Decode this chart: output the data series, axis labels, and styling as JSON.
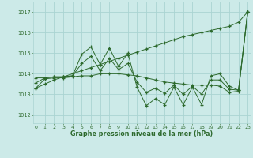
{
  "x": [
    0,
    1,
    2,
    3,
    4,
    5,
    6,
    7,
    8,
    9,
    10,
    11,
    12,
    13,
    14,
    15,
    16,
    17,
    18,
    19,
    20,
    21,
    22,
    23
  ],
  "line_diag": [
    1013.3,
    1013.5,
    1013.7,
    1013.85,
    1014.0,
    1014.15,
    1014.3,
    1014.45,
    1014.6,
    1014.75,
    1014.9,
    1015.05,
    1015.2,
    1015.35,
    1015.5,
    1015.65,
    1015.8,
    1015.9,
    1016.0,
    1016.1,
    1016.2,
    1016.3,
    1016.5,
    1017.0
  ],
  "line_flat": [
    1013.3,
    1013.75,
    1013.8,
    1013.8,
    1013.85,
    1013.9,
    1013.9,
    1014.0,
    1014.0,
    1014.0,
    1013.95,
    1013.9,
    1013.8,
    1013.7,
    1013.6,
    1013.55,
    1013.5,
    1013.45,
    1013.45,
    1013.45,
    1013.4,
    1013.1,
    1013.15,
    1017.0
  ],
  "line_zigzag": [
    1013.8,
    1013.8,
    1013.85,
    1013.85,
    1013.9,
    1014.95,
    1015.3,
    1014.45,
    1015.25,
    1014.35,
    1015.0,
    1013.35,
    1012.45,
    1012.8,
    1012.5,
    1013.35,
    1012.5,
    1013.35,
    1012.5,
    1013.9,
    1014.0,
    1013.4,
    1013.2,
    1017.0
  ],
  "line_mid": [
    1013.55,
    1013.8,
    1013.85,
    1013.85,
    1013.9,
    1014.5,
    1014.85,
    1014.15,
    1014.75,
    1014.2,
    1014.5,
    1013.6,
    1013.1,
    1013.3,
    1013.05,
    1013.45,
    1013.0,
    1013.4,
    1013.0,
    1013.7,
    1013.7,
    1013.25,
    1013.2,
    1017.0
  ],
  "bg_color": "#cceae8",
  "grid_color": "#aad4d2",
  "line_color": "#2d6a2d",
  "ylabel_ticks": [
    1012,
    1013,
    1014,
    1015,
    1016,
    1017
  ],
  "xlabel_ticks": [
    0,
    1,
    2,
    3,
    4,
    5,
    6,
    7,
    8,
    9,
    10,
    11,
    12,
    13,
    14,
    15,
    16,
    17,
    18,
    19,
    20,
    21,
    22,
    23
  ],
  "xlabel_label": "Graphe pression niveau de la mer (hPa)",
  "ylim": [
    1011.6,
    1017.5
  ],
  "xlim": [
    -0.3,
    23.3
  ]
}
